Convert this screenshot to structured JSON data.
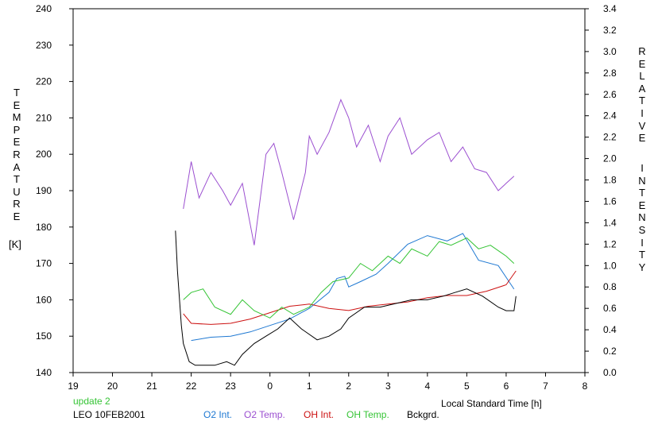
{
  "chart_data": {
    "type": "line",
    "xlabel": "Local Standard Time [h]",
    "ylabel_left": [
      "T",
      "E",
      "M",
      "P",
      "E",
      "R",
      "A",
      "T",
      "U",
      "R",
      "E"
    ],
    "ylabel_left_unit": "[K]",
    "ylabel_right": [
      "R",
      "E",
      "L",
      "A",
      "T",
      "I",
      "V",
      "E"
    ],
    "ylabel_right2": [
      "I",
      "N",
      "T",
      "E",
      "N",
      "S",
      "I",
      "T",
      "Y"
    ],
    "update_text": "update 2",
    "station_text": "LEO 10FEB2001",
    "x_ticks": [
      19,
      20,
      21,
      22,
      23,
      24,
      25,
      26,
      27,
      28,
      29,
      30,
      31,
      32
    ],
    "x_tick_labels": [
      "19",
      "20",
      "21",
      "22",
      "23",
      "0",
      "1",
      "2",
      "3",
      "4",
      "5",
      "6",
      "7",
      "8"
    ],
    "xlim": [
      19,
      32
    ],
    "ylim_left": [
      140,
      240
    ],
    "y_left_ticks": [
      140,
      150,
      160,
      170,
      180,
      190,
      200,
      210,
      220,
      230,
      240
    ],
    "ylim_right": [
      0.0,
      3.4
    ],
    "y_right_ticks": [
      "0.0",
      "0.2",
      "0.4",
      "0.6",
      "0.8",
      "1.0",
      "1.2",
      "1.4",
      "1.6",
      "1.8",
      "2.0",
      "2.2",
      "2.4",
      "2.6",
      "2.8",
      "3.0",
      "3.2",
      "3.4"
    ],
    "series": [
      {
        "name": "O2 Int.",
        "color": "#1e78d2",
        "axis": "right",
        "x": [
          22.0,
          22.5,
          23.0,
          23.5,
          24.0,
          24.5,
          25.0,
          25.5,
          25.7,
          25.9,
          26.0,
          26.3,
          26.7,
          27.0,
          27.5,
          28.0,
          28.5,
          28.9,
          29.3,
          29.8,
          30.2
        ],
        "y": [
          0.3,
          0.33,
          0.34,
          0.38,
          0.44,
          0.5,
          0.6,
          0.75,
          0.88,
          0.9,
          0.8,
          0.85,
          0.92,
          1.02,
          1.2,
          1.28,
          1.23,
          1.3,
          1.05,
          1.0,
          0.78
        ]
      },
      {
        "name": "O2 Temp.",
        "color": "#9b4fd0",
        "axis": "left",
        "x": [
          21.8,
          22.0,
          22.2,
          22.5,
          22.8,
          23.0,
          23.3,
          23.6,
          23.9,
          24.1,
          24.3,
          24.6,
          24.9,
          25.0,
          25.2,
          25.5,
          25.8,
          26.0,
          26.2,
          26.5,
          26.8,
          27.0,
          27.3,
          27.6,
          28.0,
          28.3,
          28.6,
          28.9,
          29.2,
          29.5,
          29.8,
          30.0,
          30.2
        ],
        "y": [
          185,
          198,
          188,
          195,
          190,
          186,
          192,
          175,
          200,
          203,
          195,
          182,
          195,
          205,
          200,
          206,
          215,
          210,
          202,
          208,
          198,
          205,
          210,
          200,
          204,
          206,
          198,
          202,
          196,
          195,
          190,
          192,
          194
        ]
      },
      {
        "name": "OH Int.",
        "color": "#cc1111",
        "axis": "right",
        "x": [
          21.8,
          22.0,
          22.5,
          23.0,
          23.5,
          24.0,
          24.5,
          25.0,
          25.5,
          26.0,
          26.5,
          27.0,
          27.5,
          28.0,
          28.5,
          29.0,
          29.5,
          30.0,
          30.25
        ],
        "y": [
          0.55,
          0.46,
          0.45,
          0.46,
          0.5,
          0.56,
          0.62,
          0.64,
          0.6,
          0.58,
          0.62,
          0.64,
          0.66,
          0.7,
          0.72,
          0.72,
          0.76,
          0.82,
          0.95
        ]
      },
      {
        "name": "OH Temp.",
        "color": "#35c435",
        "axis": "left",
        "x": [
          21.8,
          22.0,
          22.3,
          22.6,
          23.0,
          23.3,
          23.6,
          24.0,
          24.3,
          24.6,
          25.0,
          25.3,
          25.6,
          26.0,
          26.3,
          26.6,
          27.0,
          27.3,
          27.6,
          28.0,
          28.3,
          28.6,
          29.0,
          29.3,
          29.6,
          30.0,
          30.2
        ],
        "y": [
          160,
          162,
          163,
          158,
          156,
          160,
          157,
          155,
          158,
          156,
          158,
          162,
          165,
          166,
          170,
          168,
          172,
          170,
          174,
          172,
          176,
          175,
          177,
          174,
          175,
          172,
          170
        ]
      },
      {
        "name": "Bckgrd.",
        "color": "#000000",
        "axis": "left",
        "x": [
          21.6,
          21.65,
          21.75,
          21.8,
          21.95,
          22.1,
          22.3,
          22.6,
          22.9,
          23.1,
          23.3,
          23.6,
          23.9,
          24.2,
          24.5,
          24.8,
          25.2,
          25.5,
          25.8,
          26.0,
          26.4,
          26.8,
          27.2,
          27.6,
          28.0,
          28.4,
          28.7,
          29.0,
          29.4,
          29.8,
          30.0,
          30.2,
          30.25
        ],
        "y": [
          179,
          168,
          153,
          148,
          143,
          142,
          142,
          142,
          143,
          142,
          145,
          148,
          150,
          152,
          155,
          152,
          149,
          150,
          152,
          155,
          158,
          158,
          159,
          160,
          160,
          161,
          162,
          163,
          161,
          158,
          157,
          157,
          161
        ]
      }
    ],
    "legend_placement": "bottom"
  }
}
